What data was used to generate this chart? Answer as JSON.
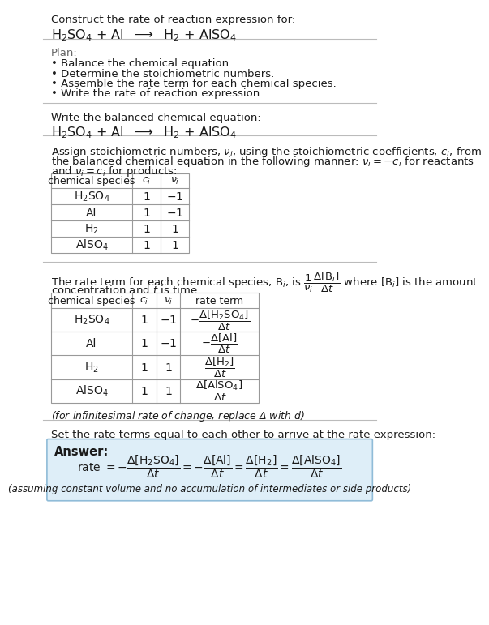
{
  "bg_color": "#ffffff",
  "text_color": "#1a1a1a",
  "gray_text": "#444444",
  "title_line1": "Construct the rate of reaction expression for:",
  "title_line2": "H$_2$SO$_4$ + Al  $\\longrightarrow$  H$_2$ + AlSO$_4$",
  "plan_header": "Plan:",
  "plan_items": [
    "• Balance the chemical equation.",
    "• Determine the stoichiometric numbers.",
    "• Assemble the rate term for each chemical species.",
    "• Write the rate of reaction expression."
  ],
  "balanced_header": "Write the balanced chemical equation:",
  "balanced_eq": "H$_2$SO$_4$ + Al  $\\longrightarrow$  H$_2$ + AlSO$_4$",
  "stoich_intro1": "Assign stoichiometric numbers, $\\nu_i$, using the stoichiometric coefficients, $c_i$, from",
  "stoich_intro2": "the balanced chemical equation in the following manner: $\\nu_i = -c_i$ for reactants",
  "stoich_intro3": "and $\\nu_i = c_i$ for products:",
  "table1_headers": [
    "chemical species",
    "$c_i$",
    "$\\nu_i$"
  ],
  "table1_rows": [
    [
      "H$_2$SO$_4$",
      "1",
      "$-1$"
    ],
    [
      "Al",
      "1",
      "$-1$"
    ],
    [
      "H$_2$",
      "1",
      "1"
    ],
    [
      "AlSO$_4$",
      "1",
      "1"
    ]
  ],
  "rate_intro1": "The rate term for each chemical species, B$_i$, is $\\dfrac{1}{\\nu_i}\\dfrac{\\Delta[\\mathrm{B}_i]}{\\Delta t}$ where [B$_i$] is the amount",
  "rate_intro2": "concentration and $t$ is time:",
  "table2_headers": [
    "chemical species",
    "$c_i$",
    "$\\nu_i$",
    "rate term"
  ],
  "table2_rows": [
    [
      "H$_2$SO$_4$",
      "1",
      "$-1$",
      "$-\\dfrac{\\Delta[\\mathrm{H_2SO_4}]}{\\Delta t}$"
    ],
    [
      "Al",
      "1",
      "$-1$",
      "$-\\dfrac{\\Delta[\\mathrm{Al}]}{\\Delta t}$"
    ],
    [
      "H$_2$",
      "1",
      "1",
      "$\\dfrac{\\Delta[\\mathrm{H_2}]}{\\Delta t}$"
    ],
    [
      "AlSO$_4$",
      "1",
      "1",
      "$\\dfrac{\\Delta[\\mathrm{AlSO_4}]}{\\Delta t}$"
    ]
  ],
  "infinitesimal_note": "(for infinitesimal rate of change, replace Δ with $d$)",
  "set_equal_text": "Set the rate terms equal to each other to arrive at the rate expression:",
  "answer_box_color": "#deeef8",
  "answer_box_border": "#90bcd8",
  "answer_label": "Answer:",
  "answer_rate": "rate $= -\\dfrac{\\Delta[\\mathrm{H_2SO_4}]}{\\Delta t} = -\\dfrac{\\Delta[\\mathrm{Al}]}{\\Delta t} = \\dfrac{\\Delta[\\mathrm{H_2}]}{\\Delta t} = \\dfrac{\\Delta[\\mathrm{AlSO_4}]}{\\Delta t}$",
  "answer_footnote": "(assuming constant volume and no accumulation of intermediates or side products)"
}
